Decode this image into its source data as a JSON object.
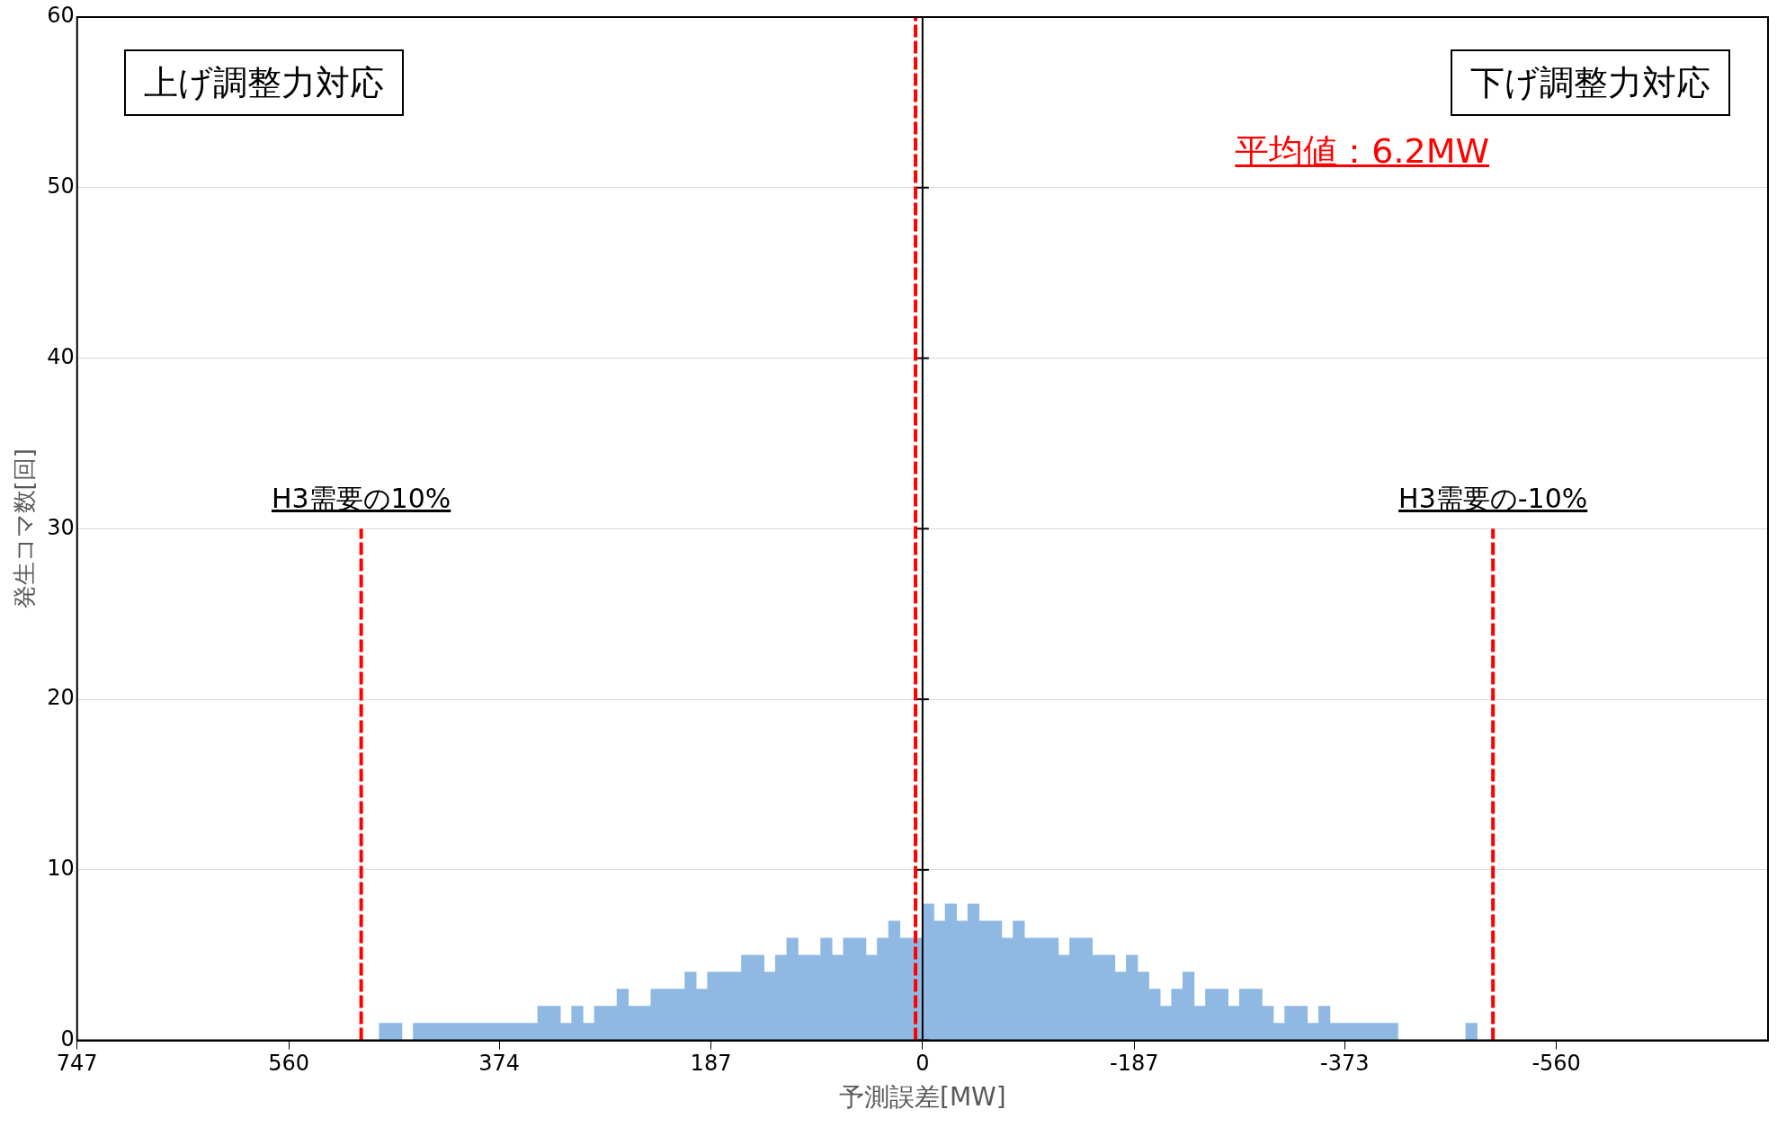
{
  "chart_data": {
    "type": "histogram",
    "xlabel": "予測誤差[MW]",
    "ylabel": "発生コマ数[回]",
    "bins": [
      -490,
      -480,
      -470,
      -460,
      -450,
      -440,
      -430,
      -420,
      -410,
      -400,
      -390,
      -380,
      -370,
      -360,
      -350,
      -340,
      -330,
      -320,
      -310,
      -300,
      -290,
      -280,
      -270,
      -260,
      -250,
      -240,
      -230,
      -220,
      -210,
      -200,
      -190,
      -180,
      -170,
      -160,
      -150,
      -140,
      -130,
      -120,
      -110,
      -100,
      -90,
      -80,
      -70,
      -60,
      -50,
      -40,
      -30,
      -20,
      -10,
      0,
      10,
      20,
      30,
      40,
      50,
      60,
      70,
      80,
      90,
      100,
      110,
      120,
      130,
      140,
      150,
      160,
      170,
      180,
      190,
      200,
      210,
      220,
      230,
      240,
      250,
      260,
      270,
      280,
      290,
      300,
      310,
      320,
      330,
      340,
      350,
      360,
      370,
      380,
      390,
      400,
      410,
      420,
      430,
      440,
      450,
      460,
      470,
      480
    ],
    "values": [
      1,
      0,
      0,
      0,
      0,
      0,
      0,
      1,
      1,
      1,
      1,
      1,
      1,
      2,
      1,
      2,
      2,
      1,
      2,
      3,
      3,
      2,
      3,
      3,
      2,
      4,
      3,
      2,
      3,
      4,
      5,
      4,
      5,
      5,
      6,
      6,
      5,
      6,
      6,
      6,
      7,
      6,
      7,
      7,
      8,
      7,
      8,
      7,
      8,
      6,
      6,
      7,
      6,
      5,
      6,
      6,
      5,
      6,
      5,
      5,
      6,
      5,
      4,
      5,
      5,
      4,
      4,
      4,
      3,
      4,
      3,
      3,
      3,
      2,
      2,
      3,
      2,
      2,
      1,
      2,
      1,
      2,
      2,
      1,
      1,
      1,
      1,
      1,
      1,
      1,
      1,
      1,
      1,
      1,
      0,
      1,
      1
    ],
    "color": "#8fb9e3",
    "xlim": [
      747,
      -747
    ],
    "xticks": [
      747,
      560,
      374,
      187,
      0,
      -187,
      -373,
      -560
    ],
    "ylim": [
      0,
      60
    ],
    "yticks": [
      0,
      10,
      20,
      30,
      40,
      50,
      60
    ],
    "grid": "y",
    "ref_lines": [
      {
        "axis": "x",
        "value": 6.2,
        "color": "#ff0000",
        "line_style": "dashed"
      },
      {
        "axis": "x",
        "value": 496,
        "color": "#ff0000",
        "line_style": "dashed"
      },
      {
        "axis": "x",
        "value": -504,
        "color": "#ff0000",
        "line_style": "dashed"
      }
    ],
    "annotations": [
      {
        "text": "H3需要の10%",
        "x": 496,
        "y": 30
      },
      {
        "text": "H3需要の-10%",
        "x": -504,
        "y": 30
      },
      "平均値：6.2MW",
      "上げ調整力対応",
      "下げ調整力対応"
    ]
  }
}
